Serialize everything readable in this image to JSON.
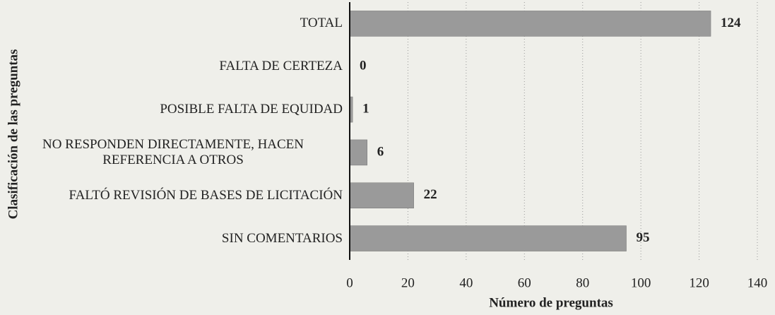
{
  "chart_data": {
    "type": "bar",
    "orientation": "horizontal",
    "categories": [
      "TOTAL",
      "FALTA DE CERTEZA",
      "POSIBLE FALTA DE EQUIDAD",
      "NO RESPONDEN DIRECTAMENTE, HACEN REFERENCIA A OTROS",
      "FALTÓ REVISIÓN DE BASES DE LICITACIÓN",
      "SIN COMENTARIOS"
    ],
    "values": [
      124,
      0,
      1,
      6,
      22,
      95
    ],
    "color": "#9a9a9a",
    "xlabel": "Número de preguntas",
    "ylabel": "Clasificación de las preguntas",
    "xlim": [
      0,
      140
    ],
    "xticks": [
      0,
      20,
      40,
      60,
      80,
      100,
      120,
      140
    ],
    "grid": true
  }
}
